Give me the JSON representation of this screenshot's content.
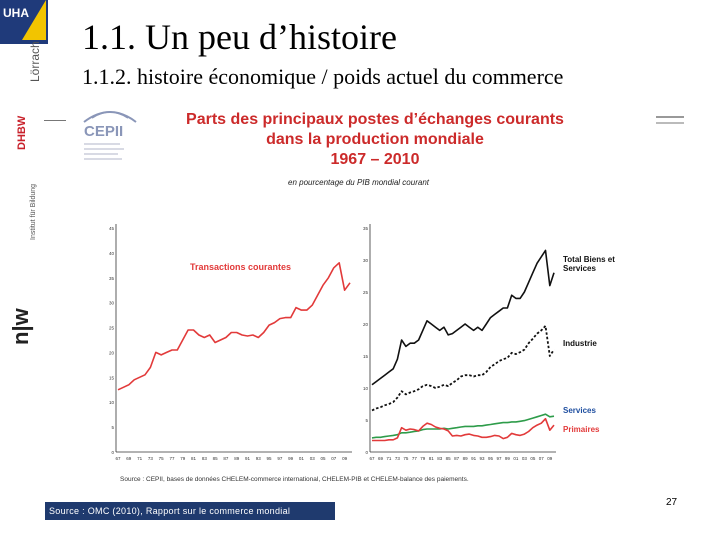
{
  "slide": {
    "title": "1.1. Un peu d’histoire",
    "subtitle": "1.1.2. histoire économique / poids actuel du commerce",
    "source": "Source : OMC (2010), Rapport sur le commerce mondial",
    "page_number": "27"
  },
  "sidebar": {
    "logo_text": "UHA",
    "lorrach": "Lörrach",
    "dhbw": "DHBW",
    "institut": "Institut für Bildung",
    "nw": "n|w"
  },
  "cepii": {
    "logo_text": "CEPII"
  },
  "chart_header": {
    "line1": "Parts des principaux postes d’échanges courants",
    "line2": "dans la production mondiale",
    "line3": "1967 – 2010",
    "caption": "en pourcentage du PIB mondial courant",
    "footnote": "Source : CEPII, bases de données CHELEM-commerce international, CHELEM-PIB et CHELEM-balance des paiements."
  },
  "colors": {
    "red": "#e23a3a",
    "black": "#111111",
    "green": "#2e9c4a",
    "blue_label": "#1f4fa0",
    "navy": "#1f3a6e"
  },
  "chart_data": [
    {
      "type": "line",
      "ylim": [
        0,
        45
      ],
      "yticks": [
        "0",
        "5",
        "10",
        "15",
        "20",
        "25",
        "30",
        "35",
        "40",
        "45"
      ],
      "xticks": [
        "67",
        "69",
        "71",
        "73",
        "75",
        "77",
        "79",
        "81",
        "83",
        "85",
        "87",
        "89",
        "91",
        "93",
        "95",
        "97",
        "99",
        "01",
        "03",
        "05",
        "07",
        "09"
      ],
      "series": [
        {
          "name": "Transactions courantes",
          "x": [
            1967,
            1968,
            1969,
            1970,
            1971,
            1972,
            1973,
            1974,
            1975,
            1976,
            1977,
            1978,
            1979,
            1980,
            1981,
            1982,
            1983,
            1984,
            1985,
            1986,
            1987,
            1988,
            1989,
            1990,
            1991,
            1992,
            1993,
            1994,
            1995,
            1996,
            1997,
            1998,
            1999,
            2000,
            2001,
            2002,
            2003,
            2004,
            2005,
            2006,
            2007,
            2008,
            2009,
            2010
          ],
          "values": [
            12.5,
            13,
            13.5,
            14.5,
            15,
            15.5,
            17,
            20,
            19.5,
            20,
            20.5,
            20.5,
            22.5,
            24.5,
            24.5,
            23.5,
            23,
            23.5,
            22,
            22.5,
            23,
            24,
            24,
            23.5,
            23.3,
            23.5,
            23,
            24,
            25.5,
            26,
            26.8,
            27,
            27,
            29,
            28.5,
            28.5,
            29.5,
            31.5,
            33.5,
            35,
            37,
            38,
            32.5,
            34
          ]
        }
      ]
    },
    {
      "type": "line",
      "ylim": [
        0,
        35
      ],
      "yticks": [
        "0",
        "5",
        "10",
        "15",
        "20",
        "25",
        "30",
        "35"
      ],
      "xticks": [
        "67",
        "69",
        "71",
        "73",
        "75",
        "77",
        "79",
        "81",
        "83",
        "85",
        "87",
        "89",
        "91",
        "93",
        "95",
        "97",
        "99",
        "01",
        "03",
        "05",
        "07",
        "09"
      ],
      "series": [
        {
          "name": "Total Biens et Services",
          "x": [
            1967,
            1968,
            1969,
            1970,
            1971,
            1972,
            1973,
            1974,
            1975,
            1976,
            1977,
            1978,
            1979,
            1980,
            1981,
            1982,
            1983,
            1984,
            1985,
            1986,
            1987,
            1988,
            1989,
            1990,
            1991,
            1992,
            1993,
            1994,
            1995,
            1996,
            1997,
            1998,
            1999,
            2000,
            2001,
            2002,
            2003,
            2004,
            2005,
            2006,
            2007,
            2008,
            2009,
            2010
          ],
          "values": [
            10.5,
            11,
            11.5,
            12,
            12.5,
            13,
            14.5,
            17.5,
            16.5,
            17,
            17,
            17.5,
            19,
            20.5,
            20,
            19.5,
            19,
            19.5,
            18.3,
            18.5,
            19,
            19.5,
            20,
            19.5,
            19,
            19.5,
            19,
            20,
            21,
            21.5,
            22,
            22.5,
            22.5,
            24.5,
            24,
            24,
            25,
            26.5,
            28,
            29.5,
            30.5,
            31.5,
            26,
            28
          ]
        },
        {
          "name": "Industrie",
          "x": [
            1967,
            1968,
            1969,
            1970,
            1971,
            1972,
            1973,
            1974,
            1975,
            1976,
            1977,
            1978,
            1979,
            1980,
            1981,
            1982,
            1983,
            1984,
            1985,
            1986,
            1987,
            1988,
            1989,
            1990,
            1991,
            1992,
            1993,
            1994,
            1995,
            1996,
            1997,
            1998,
            1999,
            2000,
            2001,
            2002,
            2003,
            2004,
            2005,
            2006,
            2007,
            2008,
            2009,
            2010
          ],
          "values": [
            6.5,
            6.8,
            7,
            7.3,
            7.5,
            7.8,
            8.5,
            9.5,
            9,
            9.3,
            9.5,
            9.8,
            10.3,
            10.5,
            10.3,
            10,
            10.2,
            10.5,
            10.3,
            10.8,
            11.2,
            11.8,
            12,
            12,
            11.8,
            12,
            12,
            12.5,
            13.3,
            13.7,
            14.2,
            14.5,
            14.7,
            15.5,
            15.3,
            15.6,
            16,
            17,
            17.7,
            18.5,
            19,
            19.7,
            15,
            16
          ]
        },
        {
          "name": "Services",
          "x": [
            1967,
            1968,
            1969,
            1970,
            1971,
            1972,
            1973,
            1974,
            1975,
            1976,
            1977,
            1978,
            1979,
            1980,
            1981,
            1982,
            1983,
            1984,
            1985,
            1986,
            1987,
            1988,
            1989,
            1990,
            1991,
            1992,
            1993,
            1994,
            1995,
            1996,
            1997,
            1998,
            1999,
            2000,
            2001,
            2002,
            2003,
            2004,
            2005,
            2006,
            2007,
            2008,
            2009,
            2010
          ],
          "values": [
            2.2,
            2.3,
            2.3,
            2.4,
            2.5,
            2.6,
            2.7,
            3.0,
            3.0,
            3.1,
            3.2,
            3.3,
            3.5,
            3.6,
            3.6,
            3.6,
            3.6,
            3.7,
            3.6,
            3.7,
            3.8,
            3.9,
            4.0,
            4.0,
            4.0,
            4.1,
            4.1,
            4.2,
            4.3,
            4.4,
            4.5,
            4.6,
            4.6,
            4.7,
            4.7,
            4.8,
            4.9,
            5.1,
            5.3,
            5.5,
            5.7,
            5.9,
            5.5,
            5.6
          ]
        },
        {
          "name": "Primaires",
          "x": [
            1967,
            1968,
            1969,
            1970,
            1971,
            1972,
            1973,
            1974,
            1975,
            1976,
            1977,
            1978,
            1979,
            1980,
            1981,
            1982,
            1983,
            1984,
            1985,
            1986,
            1987,
            1988,
            1989,
            1990,
            1991,
            1992,
            1993,
            1994,
            1995,
            1996,
            1997,
            1998,
            1999,
            2000,
            2001,
            2002,
            2003,
            2004,
            2005,
            2006,
            2007,
            2008,
            2009,
            2010
          ],
          "values": [
            1.8,
            1.8,
            1.8,
            1.8,
            1.9,
            1.9,
            2.2,
            3.8,
            3.4,
            3.6,
            3.5,
            3.3,
            4.0,
            4.5,
            4.3,
            3.9,
            3.7,
            3.6,
            3.3,
            2.5,
            2.6,
            2.5,
            2.7,
            2.8,
            2.6,
            2.5,
            2.3,
            2.3,
            2.4,
            2.6,
            2.5,
            2.1,
            2.3,
            2.9,
            2.7,
            2.6,
            2.8,
            3.2,
            3.8,
            4.2,
            4.5,
            5.2,
            3.4,
            4.2
          ]
        }
      ]
    }
  ]
}
